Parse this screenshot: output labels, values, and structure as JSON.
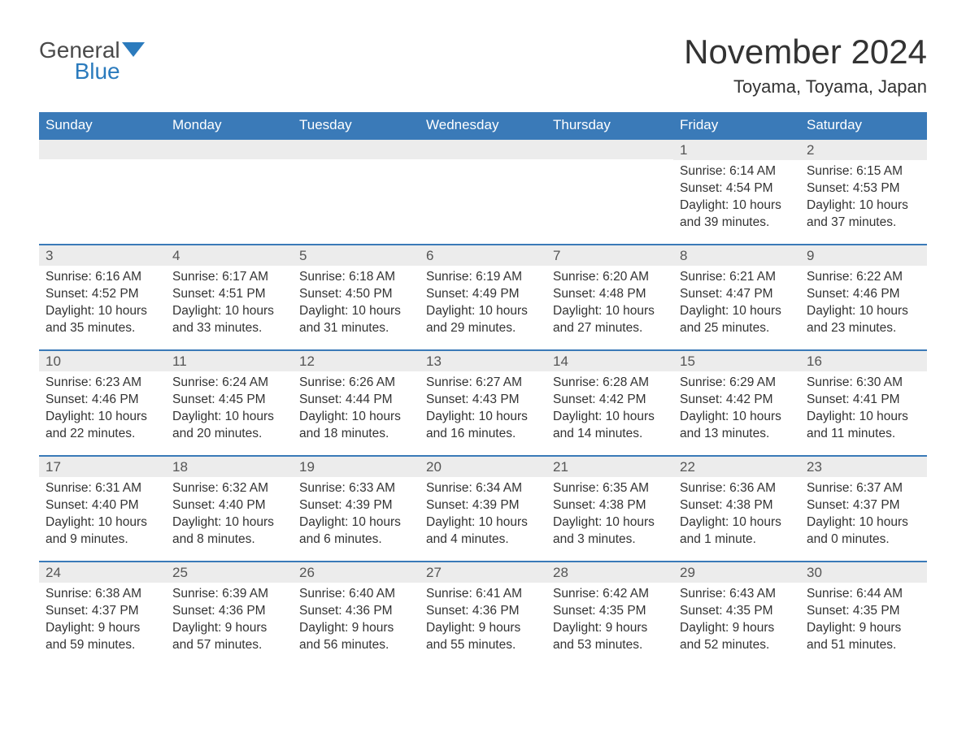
{
  "logo": {
    "word1": "General",
    "word2": "Blue",
    "flag_color": "#2b7bbd"
  },
  "title": "November 2024",
  "location": "Toyama, Toyama, Japan",
  "colors": {
    "header_bg": "#3a7ab8",
    "header_text": "#ffffff",
    "row_border": "#3a7ab8",
    "daynum_bg": "#ececec",
    "text": "#333333",
    "logo_gray": "#4a4a4a",
    "logo_blue": "#2b7bbd",
    "page_bg": "#ffffff"
  },
  "fonts": {
    "family": "Arial",
    "title_size": 42,
    "location_size": 22,
    "weekday_size": 17,
    "body_size": 15.5
  },
  "weekdays": [
    "Sunday",
    "Monday",
    "Tuesday",
    "Wednesday",
    "Thursday",
    "Friday",
    "Saturday"
  ],
  "weeks": [
    [
      null,
      null,
      null,
      null,
      null,
      {
        "n": "1",
        "sunrise": "Sunrise: 6:14 AM",
        "sunset": "Sunset: 4:54 PM",
        "daylight": "Daylight: 10 hours and 39 minutes."
      },
      {
        "n": "2",
        "sunrise": "Sunrise: 6:15 AM",
        "sunset": "Sunset: 4:53 PM",
        "daylight": "Daylight: 10 hours and 37 minutes."
      }
    ],
    [
      {
        "n": "3",
        "sunrise": "Sunrise: 6:16 AM",
        "sunset": "Sunset: 4:52 PM",
        "daylight": "Daylight: 10 hours and 35 minutes."
      },
      {
        "n": "4",
        "sunrise": "Sunrise: 6:17 AM",
        "sunset": "Sunset: 4:51 PM",
        "daylight": "Daylight: 10 hours and 33 minutes."
      },
      {
        "n": "5",
        "sunrise": "Sunrise: 6:18 AM",
        "sunset": "Sunset: 4:50 PM",
        "daylight": "Daylight: 10 hours and 31 minutes."
      },
      {
        "n": "6",
        "sunrise": "Sunrise: 6:19 AM",
        "sunset": "Sunset: 4:49 PM",
        "daylight": "Daylight: 10 hours and 29 minutes."
      },
      {
        "n": "7",
        "sunrise": "Sunrise: 6:20 AM",
        "sunset": "Sunset: 4:48 PM",
        "daylight": "Daylight: 10 hours and 27 minutes."
      },
      {
        "n": "8",
        "sunrise": "Sunrise: 6:21 AM",
        "sunset": "Sunset: 4:47 PM",
        "daylight": "Daylight: 10 hours and 25 minutes."
      },
      {
        "n": "9",
        "sunrise": "Sunrise: 6:22 AM",
        "sunset": "Sunset: 4:46 PM",
        "daylight": "Daylight: 10 hours and 23 minutes."
      }
    ],
    [
      {
        "n": "10",
        "sunrise": "Sunrise: 6:23 AM",
        "sunset": "Sunset: 4:46 PM",
        "daylight": "Daylight: 10 hours and 22 minutes."
      },
      {
        "n": "11",
        "sunrise": "Sunrise: 6:24 AM",
        "sunset": "Sunset: 4:45 PM",
        "daylight": "Daylight: 10 hours and 20 minutes."
      },
      {
        "n": "12",
        "sunrise": "Sunrise: 6:26 AM",
        "sunset": "Sunset: 4:44 PM",
        "daylight": "Daylight: 10 hours and 18 minutes."
      },
      {
        "n": "13",
        "sunrise": "Sunrise: 6:27 AM",
        "sunset": "Sunset: 4:43 PM",
        "daylight": "Daylight: 10 hours and 16 minutes."
      },
      {
        "n": "14",
        "sunrise": "Sunrise: 6:28 AM",
        "sunset": "Sunset: 4:42 PM",
        "daylight": "Daylight: 10 hours and 14 minutes."
      },
      {
        "n": "15",
        "sunrise": "Sunrise: 6:29 AM",
        "sunset": "Sunset: 4:42 PM",
        "daylight": "Daylight: 10 hours and 13 minutes."
      },
      {
        "n": "16",
        "sunrise": "Sunrise: 6:30 AM",
        "sunset": "Sunset: 4:41 PM",
        "daylight": "Daylight: 10 hours and 11 minutes."
      }
    ],
    [
      {
        "n": "17",
        "sunrise": "Sunrise: 6:31 AM",
        "sunset": "Sunset: 4:40 PM",
        "daylight": "Daylight: 10 hours and 9 minutes."
      },
      {
        "n": "18",
        "sunrise": "Sunrise: 6:32 AM",
        "sunset": "Sunset: 4:40 PM",
        "daylight": "Daylight: 10 hours and 8 minutes."
      },
      {
        "n": "19",
        "sunrise": "Sunrise: 6:33 AM",
        "sunset": "Sunset: 4:39 PM",
        "daylight": "Daylight: 10 hours and 6 minutes."
      },
      {
        "n": "20",
        "sunrise": "Sunrise: 6:34 AM",
        "sunset": "Sunset: 4:39 PM",
        "daylight": "Daylight: 10 hours and 4 minutes."
      },
      {
        "n": "21",
        "sunrise": "Sunrise: 6:35 AM",
        "sunset": "Sunset: 4:38 PM",
        "daylight": "Daylight: 10 hours and 3 minutes."
      },
      {
        "n": "22",
        "sunrise": "Sunrise: 6:36 AM",
        "sunset": "Sunset: 4:38 PM",
        "daylight": "Daylight: 10 hours and 1 minute."
      },
      {
        "n": "23",
        "sunrise": "Sunrise: 6:37 AM",
        "sunset": "Sunset: 4:37 PM",
        "daylight": "Daylight: 10 hours and 0 minutes."
      }
    ],
    [
      {
        "n": "24",
        "sunrise": "Sunrise: 6:38 AM",
        "sunset": "Sunset: 4:37 PM",
        "daylight": "Daylight: 9 hours and 59 minutes."
      },
      {
        "n": "25",
        "sunrise": "Sunrise: 6:39 AM",
        "sunset": "Sunset: 4:36 PM",
        "daylight": "Daylight: 9 hours and 57 minutes."
      },
      {
        "n": "26",
        "sunrise": "Sunrise: 6:40 AM",
        "sunset": "Sunset: 4:36 PM",
        "daylight": "Daylight: 9 hours and 56 minutes."
      },
      {
        "n": "27",
        "sunrise": "Sunrise: 6:41 AM",
        "sunset": "Sunset: 4:36 PM",
        "daylight": "Daylight: 9 hours and 55 minutes."
      },
      {
        "n": "28",
        "sunrise": "Sunrise: 6:42 AM",
        "sunset": "Sunset: 4:35 PM",
        "daylight": "Daylight: 9 hours and 53 minutes."
      },
      {
        "n": "29",
        "sunrise": "Sunrise: 6:43 AM",
        "sunset": "Sunset: 4:35 PM",
        "daylight": "Daylight: 9 hours and 52 minutes."
      },
      {
        "n": "30",
        "sunrise": "Sunrise: 6:44 AM",
        "sunset": "Sunset: 4:35 PM",
        "daylight": "Daylight: 9 hours and 51 minutes."
      }
    ]
  ]
}
